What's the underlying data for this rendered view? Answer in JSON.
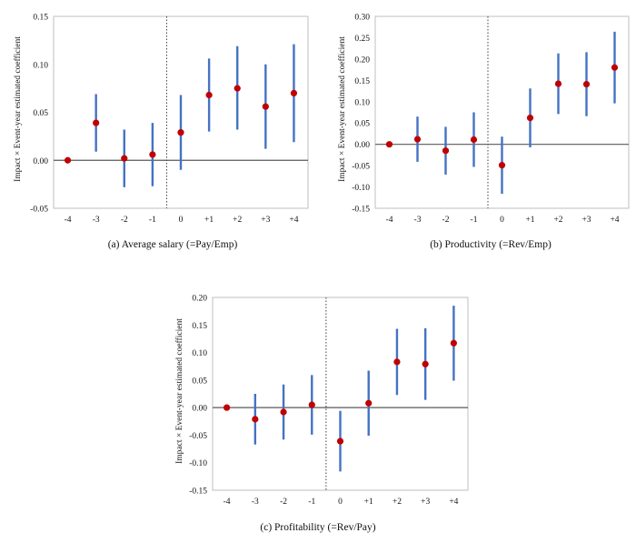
{
  "chart_data": [
    {
      "type": "scatter",
      "variant": "errorbar",
      "caption": "(a) Average salary (=Pay/Emp)",
      "ylabel": "Impact × Event-year estimated coefficient",
      "categories": [
        "-4",
        "-3",
        "-2",
        "-1",
        "0",
        "+1",
        "+2",
        "+3",
        "+4"
      ],
      "values": [
        0.0,
        0.039,
        0.002,
        0.006,
        0.029,
        0.068,
        0.075,
        0.056,
        0.07
      ],
      "ci_low": [
        0.0,
        0.009,
        -0.028,
        -0.027,
        -0.01,
        0.03,
        0.032,
        0.012,
        0.019
      ],
      "ci_high": [
        0.0,
        0.069,
        0.032,
        0.039,
        0.068,
        0.106,
        0.119,
        0.1,
        0.121
      ],
      "ylim": [
        -0.05,
        0.15
      ],
      "yticks": [
        "-0.05",
        "0.00",
        "0.05",
        "0.10",
        "0.15"
      ],
      "ytick_values": [
        -0.05,
        0.0,
        0.05,
        0.1,
        0.15
      ],
      "event_line_after": "-1",
      "colors": {
        "point": "#c00000",
        "bar": "#4472c4"
      }
    },
    {
      "type": "scatter",
      "variant": "errorbar",
      "caption": "(b) Productivity (=Rev/Emp)",
      "ylabel": "Impact × Event-year estimated coefficient",
      "categories": [
        "-4",
        "-3",
        "-2",
        "-1",
        "0",
        "+1",
        "+2",
        "+3",
        "+4"
      ],
      "values": [
        0.0,
        0.012,
        -0.015,
        0.011,
        -0.049,
        0.062,
        0.142,
        0.141,
        0.18
      ],
      "ci_low": [
        0.0,
        -0.041,
        -0.071,
        -0.053,
        -0.116,
        -0.007,
        0.071,
        0.066,
        0.096
      ],
      "ci_high": [
        0.0,
        0.065,
        0.041,
        0.075,
        0.018,
        0.131,
        0.213,
        0.216,
        0.264
      ],
      "ylim": [
        -0.15,
        0.3
      ],
      "yticks": [
        "-0.15",
        "-0.10",
        "-0.05",
        "0.00",
        "0.05",
        "0.10",
        "0.15",
        "0.20",
        "0.25",
        "0.30"
      ],
      "ytick_values": [
        -0.15,
        -0.1,
        -0.05,
        0.0,
        0.05,
        0.1,
        0.15,
        0.2,
        0.25,
        0.3
      ],
      "event_line_after": "-1",
      "colors": {
        "point": "#c00000",
        "bar": "#4472c4"
      }
    },
    {
      "type": "scatter",
      "variant": "errorbar",
      "caption": "(c) Profitability (=Rev/Pay)",
      "ylabel": "Impact × Event-year estimated coefficient",
      "categories": [
        "-4",
        "-3",
        "-2",
        "-1",
        "0",
        "+1",
        "+2",
        "+3",
        "+4"
      ],
      "values": [
        0.0,
        -0.021,
        -0.008,
        0.005,
        -0.061,
        0.008,
        0.083,
        0.079,
        0.117
      ],
      "ci_low": [
        0.0,
        -0.067,
        -0.058,
        -0.049,
        -0.116,
        -0.051,
        0.023,
        0.014,
        0.049
      ],
      "ci_high": [
        0.0,
        0.025,
        0.042,
        0.059,
        -0.006,
        0.067,
        0.143,
        0.144,
        0.185
      ],
      "ylim": [
        -0.15,
        0.2
      ],
      "yticks": [
        "-0.15",
        "-0.10",
        "-0.05",
        "0.00",
        "0.05",
        "0.10",
        "0.15",
        "0.20"
      ],
      "ytick_values": [
        -0.15,
        -0.1,
        -0.05,
        0.0,
        0.05,
        0.1,
        0.15,
        0.2
      ],
      "event_line_after": "-1",
      "colors": {
        "point": "#c00000",
        "bar": "#4472c4"
      }
    }
  ]
}
